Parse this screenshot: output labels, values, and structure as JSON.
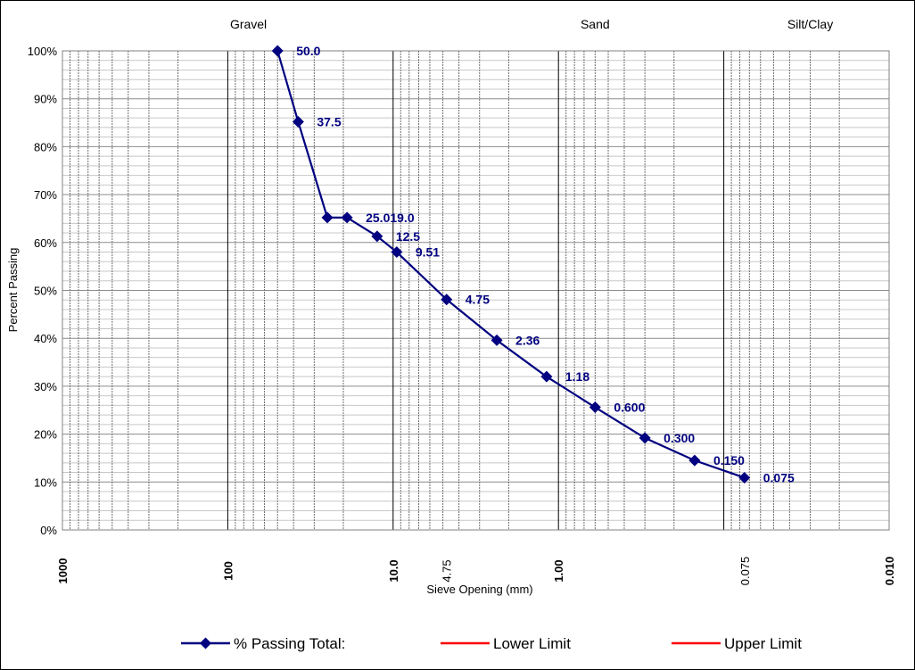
{
  "chart_data": {
    "type": "line",
    "xscale": "log",
    "xaxis_reversed": true,
    "xlim": [
      1000,
      0.01
    ],
    "ylim": [
      0,
      100
    ],
    "ylabel": "Percent Passing",
    "xlabel": "Sieve Opening (mm)",
    "y_ticks": [
      "0%",
      "10%",
      "20%",
      "30%",
      "40%",
      "50%",
      "60%",
      "70%",
      "80%",
      "90%",
      "100%"
    ],
    "x_ticks": [
      {
        "value": 1000,
        "label": "1000"
      },
      {
        "value": 100,
        "label": "100"
      },
      {
        "value": 10,
        "label": "10.0"
      },
      {
        "value": 4.75,
        "label": "4.75"
      },
      {
        "value": 1,
        "label": "1.00"
      },
      {
        "value": 0.075,
        "label": "0.075"
      },
      {
        "value": 0.01,
        "label": "0.010"
      }
    ],
    "zones": [
      {
        "label": "Gravel",
        "at": 75
      },
      {
        "label": "Sand",
        "at": 0.6
      },
      {
        "label": "Silt/Clay",
        "at": 0.03
      }
    ],
    "grid": true,
    "legend_position": "bottom",
    "series": [
      {
        "name": "% Passing Total:",
        "color": "#000080",
        "marker": "diamond",
        "points": [
          {
            "x": 50.0,
            "y": 100,
            "label": "50.0"
          },
          {
            "x": 37.5,
            "y": 85.2,
            "label": "37.5"
          },
          {
            "x": 25.0,
            "y": 65.2,
            "label": ""
          },
          {
            "x": 19.0,
            "y": 65.2,
            "label": "25.019.0"
          },
          {
            "x": 12.5,
            "y": 61.3,
            "label": "12.5"
          },
          {
            "x": 9.51,
            "y": 58.0,
            "label": "9.51"
          },
          {
            "x": 4.75,
            "y": 48.1,
            "label": "4.75"
          },
          {
            "x": 2.36,
            "y": 39.6,
            "label": "2.36"
          },
          {
            "x": 1.18,
            "y": 32.0,
            "label": "1.18"
          },
          {
            "x": 0.6,
            "y": 25.6,
            "label": "0.600"
          },
          {
            "x": 0.3,
            "y": 19.2,
            "label": "0.300"
          },
          {
            "x": 0.15,
            "y": 14.5,
            "label": "0.150"
          },
          {
            "x": 0.075,
            "y": 10.9,
            "label": "0.075"
          }
        ]
      },
      {
        "name": "Lower Limit",
        "color": "#ff0000",
        "points": []
      },
      {
        "name": "Upper Limit",
        "color": "#ff0000",
        "points": []
      }
    ]
  }
}
